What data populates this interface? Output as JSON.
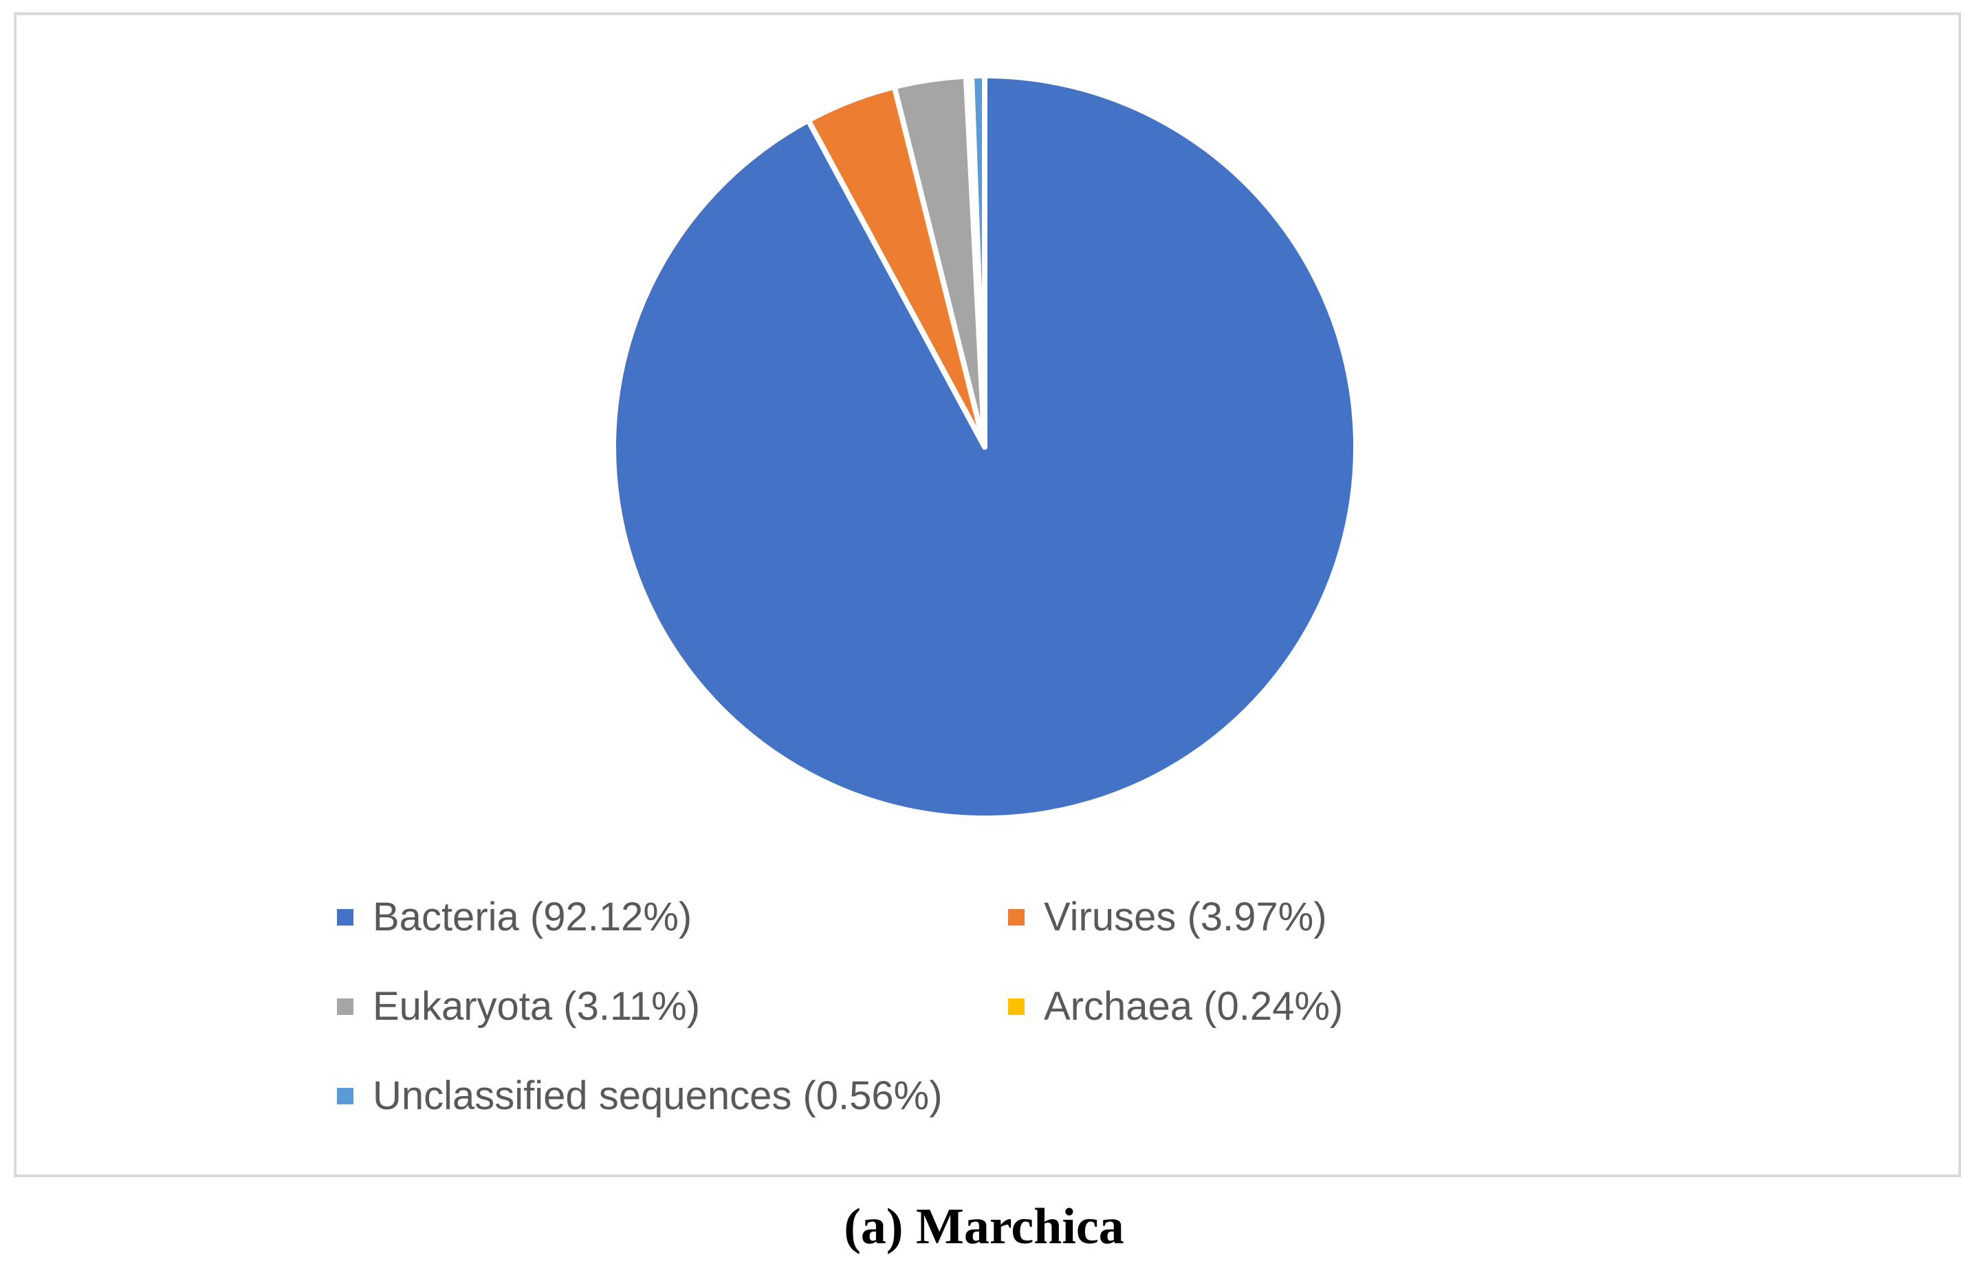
{
  "chart_data": {
    "type": "pie",
    "title": "",
    "slices": [
      {
        "name": "Bacteria (92.12%)",
        "value": 92.12,
        "color": "#4472c4"
      },
      {
        "name": "Viruses (3.97%)",
        "value": 3.97,
        "color": "#ed7d31"
      },
      {
        "name": "Eukaryota (3.11%)",
        "value": 3.11,
        "color": "#a5a5a5"
      },
      {
        "name": "Archaea (0.24%)",
        "value": 0.24,
        "color": "#ffc000"
      },
      {
        "name": "Unclassified sequences (0.56%)",
        "value": 0.56,
        "color": "#5b9bd5"
      }
    ],
    "legend_position": "bottom"
  },
  "caption": {
    "panel": "(a)",
    "name": "Marchica"
  }
}
